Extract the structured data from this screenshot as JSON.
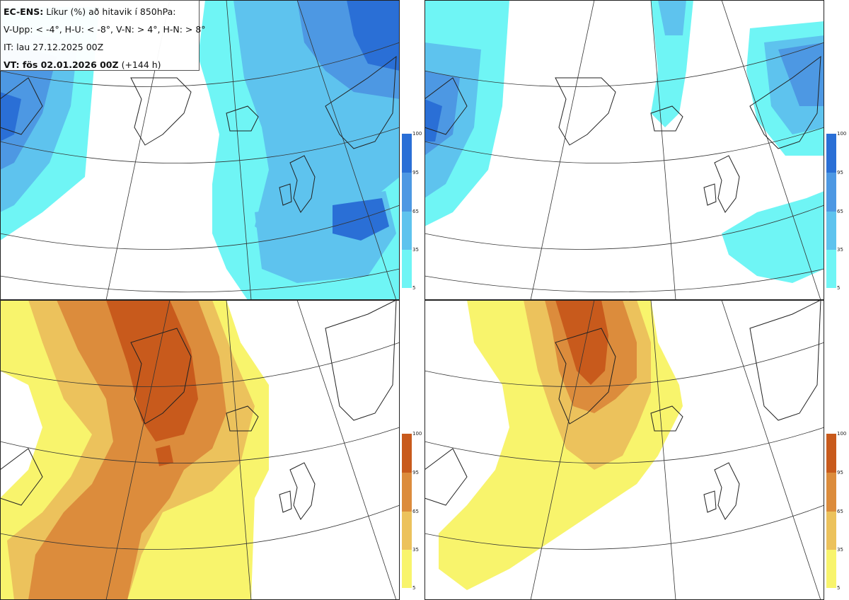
{
  "legend": {
    "model": "EC-ENS:",
    "description": "Líkur (%) að hitavik í 850hPa:",
    "thresholds": "V-Upp: < -4°, H-U: < -8°, V-N: > 4°, H-N: > 8°",
    "init_time": "IT: lau 27.12.2025 00Z",
    "valid_label": "VT: fös 02.01.2026 00Z",
    "lead": "(+144 h)"
  },
  "panels": [
    {
      "id": "V-Upp",
      "label": "V-Upp: < -4°",
      "scheme": "cold"
    },
    {
      "id": "H-U",
      "label": "H-U: < -8°",
      "scheme": "cold"
    },
    {
      "id": "V-N",
      "label": "V-N: > 4°",
      "scheme": "warm"
    },
    {
      "id": "H-N",
      "label": "H-N: > 8°",
      "scheme": "warm"
    }
  ],
  "colorbar": {
    "ticks": [
      "100",
      "95",
      "65",
      "35",
      "5"
    ],
    "cold_colors": [
      "#2a6fd6",
      "#4d98e3",
      "#5ec3ee",
      "#6ff5f5"
    ],
    "warm_colors": [
      "#c85a1c",
      "#dc8c3c",
      "#ecc25c",
      "#f8f46c"
    ]
  }
}
